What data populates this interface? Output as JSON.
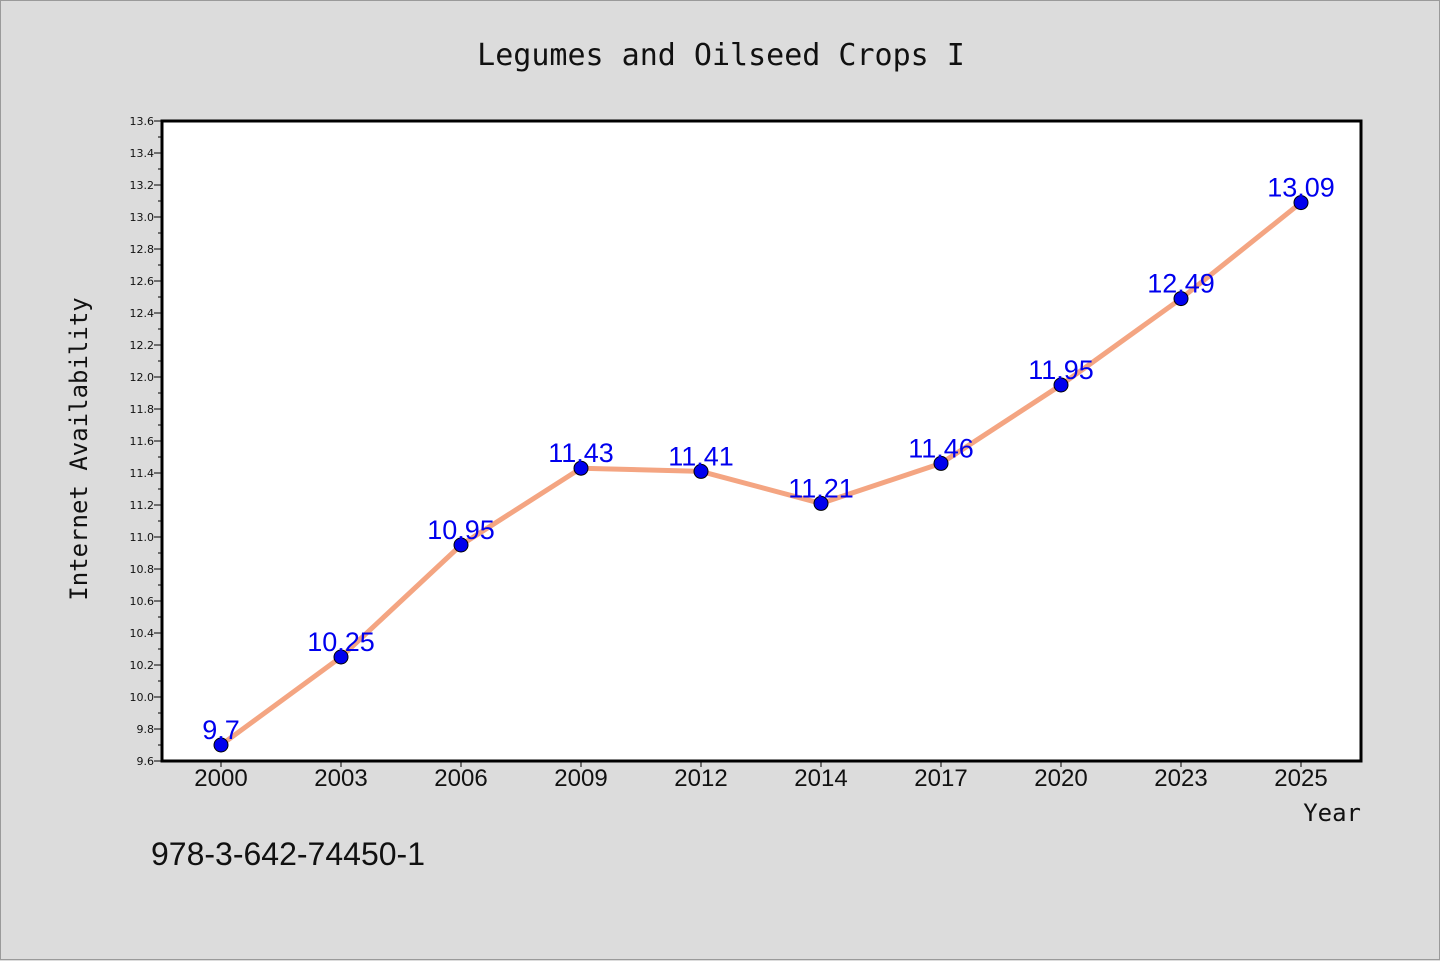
{
  "chart_data": {
    "type": "line",
    "title": "Legumes and Oilseed Crops I",
    "xlabel": "Year",
    "ylabel": "Internet Availability",
    "categories": [
      "2000",
      "2003",
      "2006",
      "2009",
      "2012",
      "2014",
      "2017",
      "2020",
      "2023",
      "2025"
    ],
    "values": [
      9.7,
      10.25,
      10.95,
      11.43,
      11.41,
      11.21,
      11.46,
      11.95,
      12.49,
      13.09
    ],
    "data_labels": [
      "9.7",
      "10.25",
      "10.95",
      "11.43",
      "11.41",
      "11.21",
      "11.46",
      "11.95",
      "12.49",
      "13.09"
    ],
    "ylim": [
      9.6,
      13.6
    ],
    "y_ticks": [
      "9.6",
      "9.8",
      "10.0",
      "10.2",
      "10.4",
      "10.6",
      "10.8",
      "11.0",
      "11.2",
      "11.4",
      "11.6",
      "11.8",
      "12.0",
      "12.2",
      "12.4",
      "12.6",
      "12.8",
      "13.0",
      "13.2",
      "13.4",
      "13.6"
    ],
    "grid": false,
    "legend": "none",
    "colors": {
      "line": "#f4a582",
      "marker": "#0000ee",
      "label": "#0000ee",
      "plot_bg": "#ffffff",
      "page_bg": "#dcdcdc"
    }
  },
  "footer_text": "978-3-642-74450-1"
}
